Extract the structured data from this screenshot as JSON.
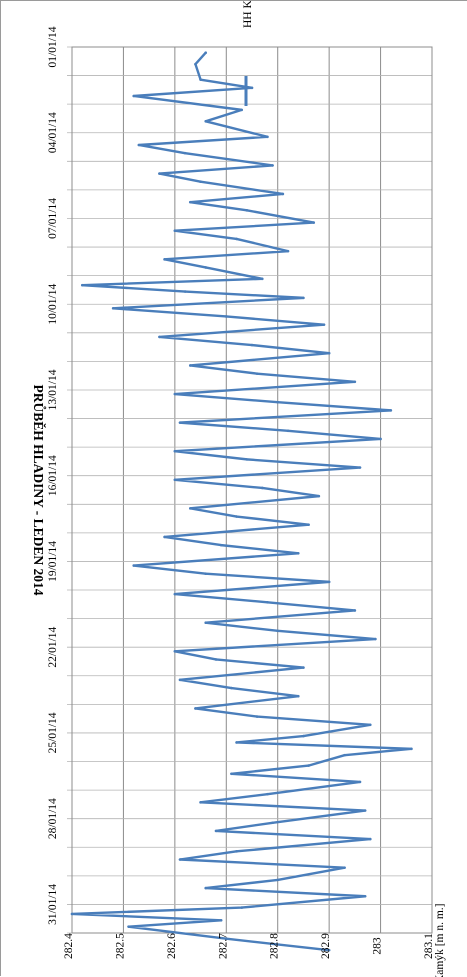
{
  "chart_data": {
    "type": "line",
    "title": "PRŮBĚH HLADINY - LEDEN 2014",
    "xlabel": "",
    "ylabel": "HH Kamýk [m n. m.]",
    "ylim": [
      282.4,
      283.1
    ],
    "yticks": [
      "282.4",
      "282.5",
      "282.6",
      "282.7",
      "282.8",
      "282.9",
      "283",
      "283.1"
    ],
    "xlim": [
      "01/01/14",
      "01/02/14"
    ],
    "x_ticks": [
      "01/01/14",
      "04/01/14",
      "07/01/14",
      "10/01/14",
      "13/01/14",
      "16/01/14",
      "19/01/14",
      "22/01/14",
      "25/01/14",
      "28/01/14",
      "31/01/14"
    ],
    "grid": true,
    "legend_position": "top-right",
    "series": [
      {
        "name": "HH Kamýk",
        "color": "#4a7ebb",
        "points": [
          [
            "01/01/14",
            282.66
          ],
          [
            "01/01/14",
            282.64
          ],
          [
            "02/01/14",
            282.65
          ],
          [
            "02/01/14",
            282.75
          ],
          [
            "02/01/14",
            282.52
          ],
          [
            "03/01/14",
            282.73
          ],
          [
            "03/01/14",
            282.66
          ],
          [
            "04/01/14",
            282.78
          ],
          [
            "04/01/14",
            282.53
          ],
          [
            "04/01/14",
            282.62
          ],
          [
            "05/01/14",
            282.79
          ],
          [
            "05/01/14",
            282.57
          ],
          [
            "05/01/14",
            282.65
          ],
          [
            "06/01/14",
            282.81
          ],
          [
            "06/01/14",
            282.63
          ],
          [
            "06/01/14",
            282.74
          ],
          [
            "07/01/14",
            282.87
          ],
          [
            "07/01/14",
            282.6
          ],
          [
            "07/01/14",
            282.72
          ],
          [
            "08/01/14",
            282.82
          ],
          [
            "08/01/14",
            282.58
          ],
          [
            "08/01/14",
            282.66
          ],
          [
            "09/01/14",
            282.77
          ],
          [
            "09/01/14",
            282.42
          ],
          [
            "09/01/14",
            282.62
          ],
          [
            "09/01/14",
            282.85
          ],
          [
            "10/01/14",
            282.48
          ],
          [
            "10/01/14",
            282.7
          ],
          [
            "10/01/14",
            282.89
          ],
          [
            "11/01/14",
            282.57
          ],
          [
            "11/01/14",
            282.75
          ],
          [
            "11/01/14",
            282.9
          ],
          [
            "12/01/14",
            282.63
          ],
          [
            "12/01/14",
            282.76
          ],
          [
            "12/01/14",
            282.95
          ],
          [
            "13/01/14",
            282.6
          ],
          [
            "13/01/14",
            282.8
          ],
          [
            "13/01/14",
            283.02
          ],
          [
            "14/01/14",
            282.61
          ],
          [
            "14/01/14",
            282.82
          ],
          [
            "14/01/14",
            283.0
          ],
          [
            "15/01/14",
            282.6
          ],
          [
            "15/01/14",
            282.74
          ],
          [
            "15/01/14",
            282.96
          ],
          [
            "16/01/14",
            282.6
          ],
          [
            "16/01/14",
            282.77
          ],
          [
            "16/01/14",
            282.88
          ],
          [
            "17/01/14",
            282.63
          ],
          [
            "17/01/14",
            282.72
          ],
          [
            "17/01/14",
            282.86
          ],
          [
            "18/01/14",
            282.58
          ],
          [
            "18/01/14",
            282.69
          ],
          [
            "18/01/14",
            282.84
          ],
          [
            "19/01/14",
            282.52
          ],
          [
            "19/01/14",
            282.66
          ],
          [
            "19/01/14",
            282.9
          ],
          [
            "20/01/14",
            282.6
          ],
          [
            "20/01/14",
            282.78
          ],
          [
            "20/01/14",
            282.95
          ],
          [
            "21/01/14",
            282.66
          ],
          [
            "21/01/14",
            282.8
          ],
          [
            "21/01/14",
            282.99
          ],
          [
            "22/01/14",
            282.6
          ],
          [
            "22/01/14",
            282.68
          ],
          [
            "22/01/14",
            282.85
          ],
          [
            "23/01/14",
            282.61
          ],
          [
            "23/01/14",
            282.71
          ],
          [
            "23/01/14",
            282.84
          ],
          [
            "24/01/14",
            282.64
          ],
          [
            "24/01/14",
            282.76
          ],
          [
            "24/01/14",
            282.98
          ],
          [
            "25/01/14",
            282.85
          ],
          [
            "25/01/14",
            282.72
          ],
          [
            "25/01/14",
            283.06
          ],
          [
            "25/01/14",
            282.93
          ],
          [
            "26/01/14",
            282.86
          ],
          [
            "26/01/14",
            282.71
          ],
          [
            "26/01/14",
            282.96
          ],
          [
            "27/01/14",
            282.78
          ],
          [
            "27/01/14",
            282.65
          ],
          [
            "27/01/14",
            282.97
          ],
          [
            "28/01/14",
            282.79
          ],
          [
            "28/01/14",
            282.68
          ],
          [
            "28/01/14",
            282.98
          ],
          [
            "29/01/14",
            282.72
          ],
          [
            "29/01/14",
            282.61
          ],
          [
            "29/01/14",
            282.93
          ],
          [
            "30/01/14",
            282.8
          ],
          [
            "30/01/14",
            282.66
          ],
          [
            "30/01/14",
            282.97
          ],
          [
            "31/01/14",
            282.73
          ],
          [
            "31/01/14",
            282.4
          ],
          [
            "31/01/14",
            282.69
          ],
          [
            "31/01/14",
            282.51
          ],
          [
            "01/02/14",
            282.7
          ],
          [
            "01/02/14",
            282.9
          ]
        ]
      }
    ]
  }
}
